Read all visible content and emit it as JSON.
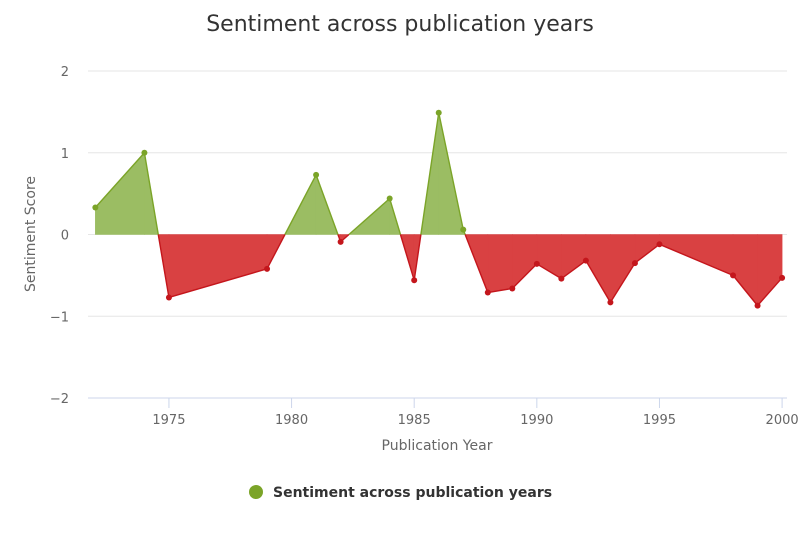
{
  "chart_data": {
    "type": "area",
    "title": "Sentiment across publication years",
    "xlabel": "Publication Year",
    "ylabel": "Sentiment Score",
    "xlim": [
      1971.7,
      2000.2
    ],
    "ylim": [
      -2,
      2
    ],
    "x_ticks": [
      1975,
      1980,
      1985,
      1990,
      1995,
      2000
    ],
    "y_ticks": [
      2,
      1,
      0,
      -1,
      -2
    ],
    "y_tick_labels": [
      "2",
      "1",
      "0",
      "−1",
      "−2"
    ],
    "grid": true,
    "legend_position": "bottom-center",
    "positive_color": "#7ba428",
    "positive_fill": "#9bbd63",
    "negative_color": "#c4161c",
    "negative_fill": "#d94142",
    "series": [
      {
        "name": "Sentiment across publication years",
        "x": [
          1972,
          1974,
          1975,
          1979,
          1981,
          1982,
          1984,
          1985,
          1986,
          1987,
          1988,
          1989,
          1990,
          1991,
          1992,
          1993,
          1994,
          1995,
          1998,
          1999,
          2000
        ],
        "y": [
          0.33,
          1.0,
          -0.77,
          -0.42,
          0.73,
          -0.09,
          0.44,
          -0.56,
          1.49,
          0.06,
          -0.71,
          -0.66,
          -0.36,
          -0.54,
          -0.32,
          -0.83,
          -0.35,
          -0.12,
          -0.5,
          -0.87,
          -0.53
        ]
      }
    ]
  }
}
